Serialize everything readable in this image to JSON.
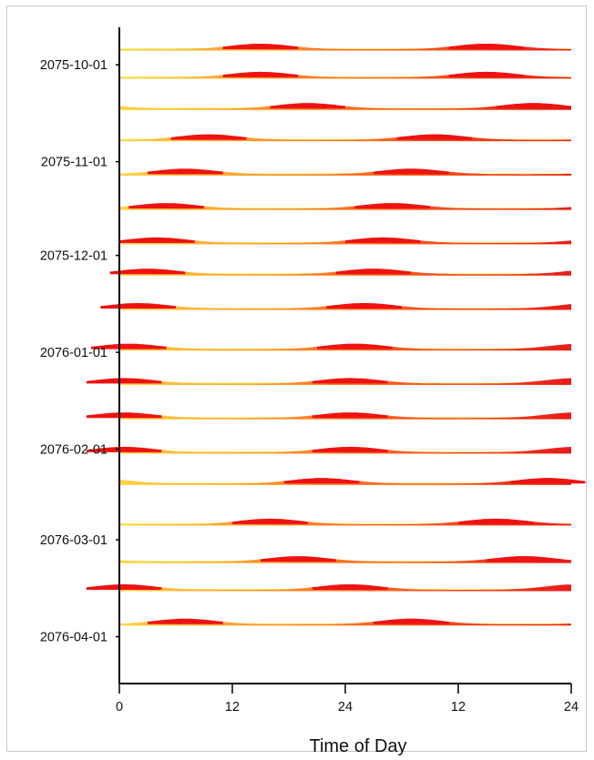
{
  "chart_data": {
    "type": "heatmap",
    "subtype": "double-plotted actogram",
    "xlabel": "Time of Day",
    "x_ticks": [
      "0",
      "12",
      "24",
      "12",
      "24"
    ],
    "x_range_hours": [
      0,
      48
    ],
    "y_ticks": [
      "2075-10-01",
      "2075-11-01",
      "2075-12-01",
      "2076-01-01",
      "2076-02-01",
      "2076-03-01",
      "2076-04-01"
    ],
    "y_range_dates": [
      "2075-09-19",
      "2076-04-16"
    ],
    "color_scale": [
      "#FFF7A0",
      "#FFE050",
      "#FFA030",
      "#FF5A1E",
      "#F01010"
    ],
    "rows": [
      {
        "date": "2075-09-26",
        "peak_hour": 15.0
      },
      {
        "date": "2075-10-05",
        "peak_hour": 15.0
      },
      {
        "date": "2075-10-15",
        "peak_hour": 20.0
      },
      {
        "date": "2075-10-25",
        "peak_hour": 9.5
      },
      {
        "date": "2075-11-05",
        "peak_hour": 7.0
      },
      {
        "date": "2075-11-16",
        "peak_hour": 5.0
      },
      {
        "date": "2075-11-27",
        "peak_hour": 4.0
      },
      {
        "date": "2075-12-07",
        "peak_hour": 3.0
      },
      {
        "date": "2075-12-18",
        "peak_hour": 2.0
      },
      {
        "date": "2075-12-31",
        "peak_hour": 1.0
      },
      {
        "date": "2076-01-11",
        "peak_hour": 0.5
      },
      {
        "date": "2076-01-22",
        "peak_hour": 0.5
      },
      {
        "date": "2076-02-02",
        "peak_hour": 0.5
      },
      {
        "date": "2076-02-12",
        "peak_hour": 21.5
      },
      {
        "date": "2076-02-25",
        "peak_hour": 16.0
      },
      {
        "date": "2076-03-08",
        "peak_hour": 19.0
      },
      {
        "date": "2076-03-17",
        "peak_hour": 0.5
      },
      {
        "date": "2076-03-28",
        "peak_hour": 7.0
      }
    ]
  }
}
